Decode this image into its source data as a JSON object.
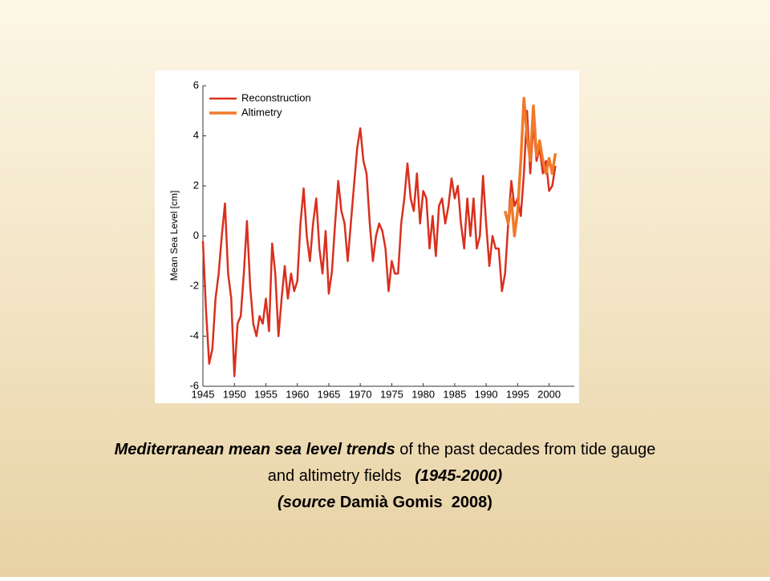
{
  "chart_data": {
    "type": "line",
    "y_label": "Mean Sea Level [cm]",
    "xlim": [
      1945,
      2004
    ],
    "xticks": [
      1945,
      1950,
      1955,
      1960,
      1965,
      1970,
      1975,
      1980,
      1985,
      1990,
      1995,
      2000
    ],
    "ylim": [
      -6,
      6
    ],
    "yticks": [
      -6,
      -4,
      -2,
      0,
      2,
      4,
      6
    ],
    "legend": "top-left",
    "series": [
      {
        "name": "Reconstruction",
        "color": "#d9301e",
        "x": [
          1945,
          1945.5,
          1946,
          1946.5,
          1947,
          1947.5,
          1948,
          1948.5,
          1949,
          1949.5,
          1950,
          1950.5,
          1951,
          1951.5,
          1952,
          1952.5,
          1953,
          1953.5,
          1954,
          1954.5,
          1955,
          1955.5,
          1956,
          1956.5,
          1957,
          1957.5,
          1958,
          1958.5,
          1959,
          1959.5,
          1960,
          1960.5,
          1961,
          1961.5,
          1962,
          1962.5,
          1963,
          1963.5,
          1964,
          1964.5,
          1965,
          1965.5,
          1966,
          1966.5,
          1967,
          1967.5,
          1968,
          1968.5,
          1969,
          1969.5,
          1970,
          1970.5,
          1971,
          1971.5,
          1972,
          1972.5,
          1973,
          1973.5,
          1974,
          1974.5,
          1975,
          1975.5,
          1976,
          1976.5,
          1977,
          1977.5,
          1978,
          1978.5,
          1979,
          1979.5,
          1980,
          1980.5,
          1981,
          1981.5,
          1982,
          1982.5,
          1983,
          1983.5,
          1984,
          1984.5,
          1985,
          1985.5,
          1986,
          1986.5,
          1987,
          1987.5,
          1988,
          1988.5,
          1989,
          1989.5,
          1990,
          1990.5,
          1991,
          1991.5,
          1992,
          1992.5,
          1993,
          1993.5,
          1994,
          1994.5,
          1995,
          1995.5,
          1996,
          1996.5,
          1997,
          1997.5,
          1998,
          1998.5,
          1999,
          1999.5,
          2000,
          2000.5,
          2001
        ],
        "values": [
          -0.2,
          -3,
          -5.1,
          -4.5,
          -2.5,
          -1.5,
          0,
          1.3,
          -1.5,
          -2.5,
          -5.6,
          -3.5,
          -3.2,
          -1.5,
          0.6,
          -2,
          -3.5,
          -4,
          -3.2,
          -3.5,
          -2.5,
          -3.8,
          -0.3,
          -1.5,
          -4,
          -2.5,
          -1.2,
          -2.5,
          -1.5,
          -2.2,
          -1.8,
          0.5,
          1.9,
          0,
          -1,
          0.5,
          1.5,
          -0.5,
          -1.5,
          0.2,
          -2.3,
          -1.4,
          0.5,
          2.2,
          1,
          0.5,
          -1,
          0.5,
          2,
          3.5,
          4.3,
          3,
          2.5,
          0.5,
          -1,
          0,
          0.5,
          0.2,
          -0.5,
          -2.2,
          -1,
          -1.5,
          -1.5,
          0.5,
          1.5,
          2.9,
          1.5,
          1,
          2.5,
          0.5,
          1.8,
          1.5,
          -0.5,
          0.8,
          -0.8,
          1.2,
          1.5,
          0.5,
          1.2,
          2.3,
          1.5,
          2,
          0.5,
          -0.5,
          1.5,
          0,
          1.5,
          -0.5,
          0,
          2.4,
          0.5,
          -1.2,
          0,
          -0.5,
          -0.5,
          -2.2,
          -1.5,
          0.5,
          2.2,
          1.2,
          1.5,
          0.8,
          2.5,
          5,
          2.5,
          4.5,
          3,
          3.5,
          2.5,
          3,
          1.8,
          2,
          2.8
        ]
      },
      {
        "name": "Altimetry",
        "color": "#f07a2a",
        "x": [
          1993,
          1993.5,
          1994,
          1994.5,
          1995,
          1995.5,
          1996,
          1996.5,
          1997,
          1997.5,
          1998,
          1998.5,
          1999,
          1999.5,
          2000,
          2000.5,
          2001
        ],
        "values": [
          1,
          0.5,
          1.5,
          0,
          1,
          3,
          5.5,
          4,
          3,
          5.2,
          3.2,
          3.8,
          3,
          2.5,
          3.1,
          2.5,
          3.3
        ]
      }
    ]
  },
  "caption": [
    [
      {
        "text": "Mediterranean mean sea level trends",
        "style": "bold-italic"
      },
      {
        "text": " of the past decades from tide gauge",
        "style": "normal"
      }
    ],
    [
      {
        "text": "and altimetry fields   ",
        "style": "normal"
      },
      {
        "text": "(1945-2000)",
        "style": "bold-italic"
      }
    ],
    [
      {
        "text": "(source",
        "style": "bold-italic"
      },
      {
        "text": " Damià Gomis  2008)",
        "style": "bold"
      }
    ]
  ]
}
